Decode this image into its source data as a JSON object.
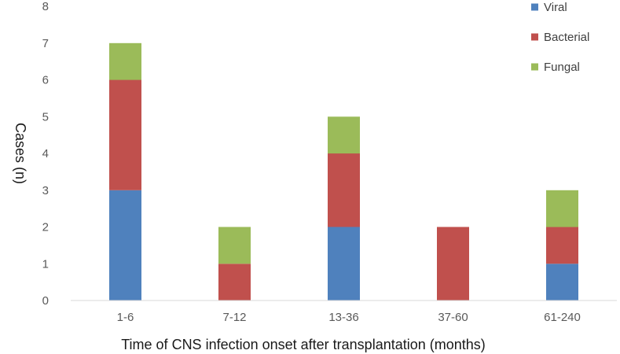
{
  "chart_data": {
    "type": "bar",
    "stacked": true,
    "categories": [
      "1-6",
      "7-12",
      "13-36",
      "37-60",
      "61-240"
    ],
    "series": [
      {
        "name": "Viral",
        "values": [
          3,
          0,
          2,
          0,
          1
        ],
        "color": "#4f81bd"
      },
      {
        "name": "Bacterial",
        "values": [
          3,
          1,
          2,
          2,
          1
        ],
        "color": "#c0504d"
      },
      {
        "name": "Fungal",
        "values": [
          1,
          1,
          1,
          0,
          1
        ],
        "color": "#9bbb59"
      }
    ],
    "title": "",
    "xlabel": "Time of CNS infection onset after transplantation (months)",
    "ylabel": "Cases (n)",
    "ylim": [
      0,
      8
    ],
    "yticks": [
      0,
      1,
      2,
      3,
      4,
      5,
      6,
      7,
      8
    ],
    "grid": false,
    "legend_position": "top-right"
  }
}
